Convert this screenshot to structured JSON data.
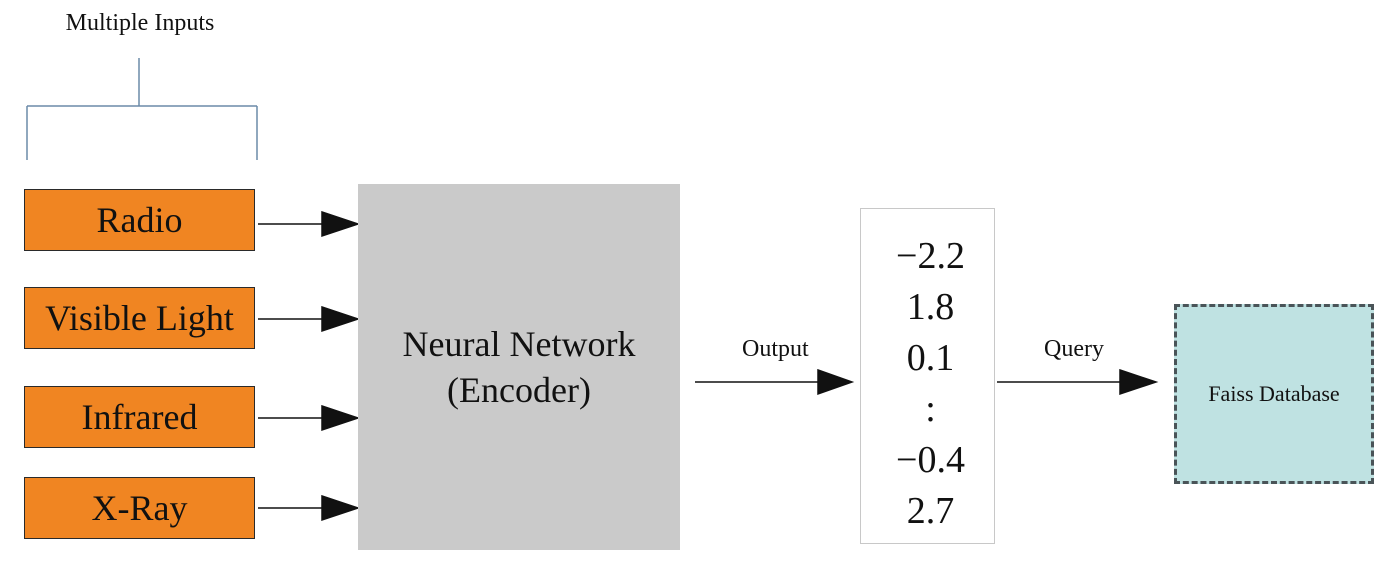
{
  "header": {
    "inputs_label": "Multiple Inputs"
  },
  "inputs": [
    {
      "label": "Radio"
    },
    {
      "label": "Visible Light"
    },
    {
      "label": "Infrared"
    },
    {
      "label": "X-Ray"
    }
  ],
  "encoder": {
    "line1": "Neural Network",
    "line2": "(Encoder)"
  },
  "edges": {
    "output_label": "Output",
    "query_label": "Query"
  },
  "vector": {
    "values": [
      "−2.2",
      "1.8",
      "0.1",
      ":",
      "−0.4",
      "2.7"
    ]
  },
  "database": {
    "label": "Faiss Database"
  },
  "colors": {
    "input_fill": "#f08522",
    "encoder_fill": "#cacaca",
    "database_fill": "#bfe2e2"
  }
}
